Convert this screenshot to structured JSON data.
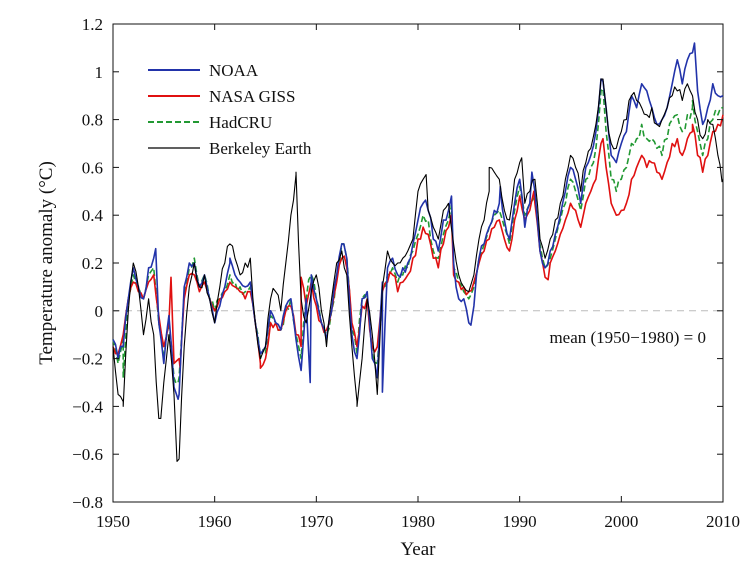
{
  "chart_data": {
    "type": "line",
    "xlabel": "Year",
    "ylabel": "Temperature anomaly (°C)",
    "xlim": [
      1950,
      2010
    ],
    "ylim": [
      -0.8,
      1.2
    ],
    "xticks": [
      1950,
      1960,
      1970,
      1980,
      1990,
      2000,
      2010
    ],
    "yticks": [
      -0.8,
      -0.6,
      -0.4,
      -0.2,
      0,
      0.2,
      0.4,
      0.6,
      0.8,
      1,
      1.2
    ],
    "ytick_labels": [
      "−0.8",
      "−0.6",
      "−0.4",
      "−0.2",
      "0",
      "0.2",
      "0.4",
      "0.6",
      "0.8",
      "1",
      "1.2"
    ],
    "annotation": "mean (1950−1980) = 0",
    "legend_position": "top-left",
    "grid": false,
    "reference_line": {
      "y": 0,
      "style": "dashed",
      "color": "#bbbbbb"
    },
    "series": [
      {
        "name": "NOAA",
        "color": "#2233aa",
        "style": "solid",
        "x": [
          1950,
          1950.5,
          1951,
          1951.5,
          1952,
          1952.5,
          1953,
          1953.5,
          1954,
          1954.5,
          1955,
          1955.5,
          1956,
          1956.5,
          1957,
          1957.5,
          1958,
          1958.5,
          1959,
          1959.5,
          1960,
          1960.5,
          1961,
          1961.5,
          1962,
          1962.5,
          1963,
          1963.5,
          1964,
          1964.5,
          1965,
          1965.5,
          1966,
          1966.5,
          1967,
          1967.5,
          1968,
          1968.5,
          1969,
          1969.5,
          1970,
          1970.5,
          1971,
          1971.5,
          1972,
          1972.5,
          1973,
          1973.5,
          1974,
          1974.5,
          1975,
          1975.5,
          1976,
          1976.5,
          1977,
          1977.5,
          1978,
          1978.5,
          1979,
          1979.5,
          1980,
          1980.5,
          1981,
          1981.5,
          1982,
          1982.5,
          1983,
          1983.5,
          1984,
          1984.5,
          1985,
          1985.5,
          1986,
          1986.5,
          1987,
          1987.5,
          1988,
          1988.5,
          1989,
          1989.5,
          1990,
          1990.5,
          1991,
          1991.5,
          1992,
          1992.5,
          1993,
          1993.5,
          1994,
          1994.5,
          1995,
          1995.5,
          1996,
          1996.5,
          1997,
          1997.5,
          1998,
          1998.5,
          1999,
          1999.5,
          2000,
          2000.5,
          2001,
          2001.5,
          2002,
          2002.5,
          2003,
          2003.5,
          2004,
          2004.5,
          2005,
          2005.5,
          2006,
          2006.5,
          2007,
          2007.5,
          2008,
          2008.5,
          2009,
          2009.5,
          2010
        ],
        "y": [
          -0.12,
          -0.2,
          -0.15,
          0.05,
          0.18,
          0.1,
          0.05,
          0.18,
          0.22,
          -0.05,
          -0.22,
          -0.02,
          -0.32,
          -0.35,
          0.1,
          0.2,
          0.2,
          0.1,
          0.15,
          0.05,
          -0.05,
          0.02,
          0.1,
          0.2,
          0.15,
          0.12,
          0.1,
          0.12,
          -0.05,
          -0.18,
          -0.15,
          0.0,
          -0.05,
          -0.08,
          0.02,
          0.05,
          -0.12,
          -0.25,
          0.05,
          0.15,
          0.05,
          -0.05,
          -0.12,
          0.0,
          0.15,
          0.28,
          0.22,
          -0.1,
          -0.2,
          0.05,
          0.08,
          -0.2,
          -0.28,
          0.12,
          0.18,
          0.22,
          0.15,
          0.18,
          0.2,
          0.28,
          0.38,
          0.45,
          0.42,
          0.3,
          0.25,
          0.38,
          0.42,
          0.2,
          0.05,
          0.05,
          -0.05,
          0.02,
          0.22,
          0.28,
          0.35,
          0.42,
          0.45,
          0.38,
          0.3,
          0.45,
          0.55,
          0.35,
          0.45,
          0.5,
          0.25,
          0.18,
          0.25,
          0.32,
          0.4,
          0.5,
          0.6,
          0.55,
          0.45,
          0.6,
          0.65,
          0.75,
          0.97,
          0.85,
          0.65,
          0.62,
          0.7,
          0.75,
          0.9,
          0.85,
          0.95,
          0.92,
          0.85,
          0.78,
          0.8,
          0.85,
          0.95,
          1.05,
          0.95,
          1.05,
          1.08,
          0.92,
          0.78,
          0.85,
          0.95,
          0.9,
          0.9
        ],
        "peaks": [
          [
            1954.2,
            0.26
          ],
          [
            1956.4,
            -0.37
          ],
          [
            1961.5,
            0.22
          ],
          [
            1969.4,
            -0.3
          ],
          [
            1972.7,
            0.28
          ],
          [
            1976.5,
            -0.34
          ],
          [
            1983.3,
            0.48
          ],
          [
            1985.2,
            -0.06
          ],
          [
            1988.1,
            0.52
          ],
          [
            1991.2,
            0.58
          ],
          [
            1998.2,
            0.96
          ],
          [
            2007.2,
            1.12
          ]
        ]
      },
      {
        "name": "NASA GISS",
        "color": "#e01010",
        "style": "solid",
        "x": [
          1950,
          1950.5,
          1951,
          1951.5,
          1952,
          1952.5,
          1953,
          1953.5,
          1954,
          1954.5,
          1955,
          1955.5,
          1956,
          1956.5,
          1957,
          1957.5,
          1958,
          1958.5,
          1959,
          1959.5,
          1960,
          1960.5,
          1961,
          1961.5,
          1962,
          1962.5,
          1963,
          1963.5,
          1964,
          1964.5,
          1965,
          1965.5,
          1966,
          1966.5,
          1967,
          1967.5,
          1968,
          1968.5,
          1969,
          1969.5,
          1970,
          1970.5,
          1971,
          1971.5,
          1972,
          1972.5,
          1973,
          1973.5,
          1974,
          1974.5,
          1975,
          1975.5,
          1976,
          1976.5,
          1977,
          1977.5,
          1978,
          1978.5,
          1979,
          1979.5,
          1980,
          1980.5,
          1981,
          1981.5,
          1982,
          1982.5,
          1983,
          1983.5,
          1984,
          1984.5,
          1985,
          1985.5,
          1986,
          1986.5,
          1987,
          1987.5,
          1988,
          1988.5,
          1989,
          1989.5,
          1990,
          1990.5,
          1991,
          1991.5,
          1992,
          1992.5,
          1993,
          1993.5,
          1994,
          1994.5,
          1995,
          1995.5,
          1996,
          1996.5,
          1997,
          1997.5,
          1998,
          1998.5,
          1999,
          1999.5,
          2000,
          2000.5,
          2001,
          2001.5,
          2002,
          2002.5,
          2003,
          2003.5,
          2004,
          2004.5,
          2005,
          2005.5,
          2006,
          2006.5,
          2007,
          2007.5,
          2008,
          2008.5,
          2009,
          2009.5,
          2010
        ],
        "y": [
          -0.15,
          -0.18,
          -0.1,
          0.05,
          0.12,
          0.08,
          0.05,
          0.12,
          0.15,
          -0.02,
          -0.15,
          -0.05,
          -0.22,
          -0.2,
          0.05,
          0.15,
          0.15,
          0.08,
          0.12,
          0.05,
          0.0,
          0.05,
          0.08,
          0.12,
          0.1,
          0.08,
          0.05,
          0.08,
          -0.05,
          -0.22,
          -0.2,
          -0.05,
          -0.05,
          -0.08,
          0.0,
          0.02,
          -0.1,
          -0.15,
          0.02,
          0.12,
          0.02,
          -0.05,
          -0.08,
          0.0,
          0.12,
          0.22,
          0.18,
          -0.05,
          -0.15,
          0.02,
          0.05,
          -0.15,
          -0.15,
          0.08,
          0.12,
          0.15,
          0.08,
          0.12,
          0.15,
          0.22,
          0.3,
          0.35,
          0.32,
          0.22,
          0.18,
          0.28,
          0.35,
          0.15,
          0.12,
          0.1,
          0.08,
          0.12,
          0.2,
          0.25,
          0.3,
          0.35,
          0.38,
          0.3,
          0.25,
          0.38,
          0.48,
          0.38,
          0.42,
          0.45,
          0.25,
          0.14,
          0.2,
          0.25,
          0.32,
          0.38,
          0.45,
          0.42,
          0.35,
          0.45,
          0.5,
          0.55,
          0.7,
          0.6,
          0.45,
          0.4,
          0.42,
          0.45,
          0.55,
          0.6,
          0.65,
          0.6,
          0.62,
          0.58,
          0.55,
          0.62,
          0.7,
          0.72,
          0.65,
          0.72,
          0.75,
          0.65,
          0.58,
          0.65,
          0.75,
          0.78,
          0.82
        ],
        "peaks": [
          [
            1955.7,
            0.14
          ],
          [
            1956.6,
            -0.24
          ],
          [
            1964.5,
            -0.24
          ],
          [
            1968.5,
            0.14
          ],
          [
            1983.3,
            0.4
          ],
          [
            1991.4,
            0.5
          ],
          [
            1992.8,
            0.13
          ],
          [
            1998.2,
            0.72
          ],
          [
            2007.0,
            0.78
          ]
        ]
      },
      {
        "name": "HadCRU",
        "color": "#229933",
        "style": "dashed",
        "x": [
          1950,
          1950.5,
          1951,
          1951.5,
          1952,
          1952.5,
          1953,
          1953.5,
          1954,
          1954.5,
          1955,
          1955.5,
          1956,
          1956.5,
          1957,
          1957.5,
          1958,
          1958.5,
          1959,
          1959.5,
          1960,
          1960.5,
          1961,
          1961.5,
          1962,
          1962.5,
          1963,
          1963.5,
          1964,
          1964.5,
          1965,
          1965.5,
          1966,
          1966.5,
          1967,
          1967.5,
          1968,
          1968.5,
          1969,
          1969.5,
          1970,
          1970.5,
          1971,
          1971.5,
          1972,
          1972.5,
          1973,
          1973.5,
          1974,
          1974.5,
          1975,
          1975.5,
          1976,
          1976.5,
          1977,
          1977.5,
          1978,
          1978.5,
          1979,
          1979.5,
          1980,
          1980.5,
          1981,
          1981.5,
          1982,
          1982.5,
          1983,
          1983.5,
          1984,
          1984.5,
          1985,
          1985.5,
          1986,
          1986.5,
          1987,
          1987.5,
          1988,
          1988.5,
          1989,
          1989.5,
          1990,
          1990.5,
          1991,
          1991.5,
          1992,
          1992.5,
          1993,
          1993.5,
          1994,
          1994.5,
          1995,
          1995.5,
          1996,
          1996.5,
          1997,
          1997.5,
          1998,
          1998.5,
          1999,
          1999.5,
          2000,
          2000.5,
          2001,
          2001.5,
          2002,
          2002.5,
          2003,
          2003.5,
          2004,
          2004.5,
          2005,
          2005.5,
          2006,
          2006.5,
          2007,
          2007.5,
          2008,
          2008.5,
          2009,
          2009.5,
          2010
        ],
        "y": [
          -0.12,
          -0.22,
          -0.12,
          0.05,
          0.15,
          0.1,
          0.05,
          0.15,
          0.18,
          -0.05,
          -0.2,
          -0.05,
          -0.28,
          -0.28,
          0.08,
          0.18,
          0.22,
          0.1,
          0.15,
          0.05,
          0.0,
          0.05,
          0.08,
          0.15,
          0.12,
          0.1,
          0.08,
          0.1,
          -0.05,
          -0.2,
          -0.18,
          -0.02,
          -0.05,
          -0.08,
          0.02,
          0.05,
          -0.1,
          -0.2,
          0.05,
          0.15,
          0.05,
          -0.05,
          -0.1,
          0.0,
          0.15,
          0.28,
          0.22,
          -0.08,
          -0.18,
          0.05,
          0.05,
          -0.18,
          -0.22,
          0.1,
          0.15,
          0.18,
          0.12,
          0.15,
          0.18,
          0.25,
          0.32,
          0.4,
          0.38,
          0.25,
          0.22,
          0.32,
          0.38,
          0.18,
          0.12,
          0.08,
          0.05,
          0.1,
          0.22,
          0.28,
          0.35,
          0.4,
          0.42,
          0.35,
          0.28,
          0.42,
          0.52,
          0.4,
          0.45,
          0.48,
          0.28,
          0.18,
          0.22,
          0.3,
          0.38,
          0.45,
          0.55,
          0.5,
          0.42,
          0.55,
          0.6,
          0.68,
          0.92,
          0.75,
          0.55,
          0.5,
          0.55,
          0.6,
          0.7,
          0.72,
          0.78,
          0.72,
          0.72,
          0.68,
          0.65,
          0.72,
          0.8,
          0.82,
          0.75,
          0.82,
          0.85,
          0.75,
          0.65,
          0.72,
          0.8,
          0.82,
          0.85
        ],
        "peaks": [
          [
            1951.0,
            -0.28
          ],
          [
            1956.4,
            -0.3
          ],
          [
            1972.7,
            0.28
          ],
          [
            1983.3,
            0.44
          ],
          [
            1998.2,
            0.93
          ],
          [
            2007.0,
            0.88
          ]
        ]
      },
      {
        "name": "Berkeley Earth",
        "color": "#000000",
        "style": "solid",
        "x": [
          1950,
          1950.5,
          1951,
          1951.5,
          1952,
          1952.5,
          1953,
          1953.5,
          1954,
          1954.5,
          1955,
          1955.5,
          1956,
          1956.5,
          1957,
          1957.5,
          1958,
          1958.5,
          1959,
          1959.5,
          1960,
          1960.5,
          1961,
          1961.5,
          1962,
          1962.5,
          1963,
          1963.5,
          1964,
          1964.5,
          1965,
          1965.5,
          1966,
          1966.5,
          1967,
          1967.5,
          1968,
          1968.5,
          1969,
          1969.5,
          1970,
          1970.5,
          1971,
          1971.5,
          1972,
          1972.5,
          1973,
          1973.5,
          1974,
          1974.5,
          1975,
          1975.5,
          1976,
          1976.5,
          1977,
          1977.5,
          1978,
          1978.5,
          1979,
          1979.5,
          1980,
          1980.5,
          1981,
          1981.5,
          1982,
          1982.5,
          1983,
          1983.5,
          1984,
          1984.5,
          1985,
          1985.5,
          1986,
          1986.5,
          1987,
          1987.5,
          1988,
          1988.5,
          1989,
          1989.5,
          1990,
          1990.5,
          1991,
          1991.5,
          1992,
          1992.5,
          1993,
          1993.5,
          1994,
          1994.5,
          1995,
          1995.5,
          1996,
          1996.5,
          1997,
          1997.5,
          1998,
          1998.5,
          1999,
          1999.5,
          2000,
          2000.5,
          2001,
          2001.5,
          2002,
          2002.5,
          2003,
          2003.5,
          2004,
          2004.5,
          2005,
          2005.5,
          2006,
          2006.5,
          2007,
          2007.5,
          2008,
          2008.5,
          2009,
          2009.5,
          2010
        ],
        "y": [
          -0.15,
          -0.35,
          -0.38,
          0.0,
          0.2,
          0.1,
          -0.1,
          0.05,
          -0.1,
          -0.45,
          -0.3,
          -0.1,
          -0.35,
          -0.62,
          -0.15,
          0.1,
          0.2,
          0.1,
          0.15,
          0.05,
          -0.05,
          0.1,
          0.2,
          0.28,
          0.22,
          0.15,
          0.2,
          0.22,
          -0.05,
          -0.2,
          -0.15,
          0.05,
          0.08,
          0.0,
          0.2,
          0.4,
          0.57,
          0.05,
          -0.05,
          0.08,
          0.15,
          0.0,
          -0.15,
          0.05,
          0.2,
          0.25,
          0.15,
          -0.15,
          -0.38,
          -0.2,
          0.05,
          -0.1,
          -0.35,
          0.1,
          0.25,
          0.2,
          0.2,
          0.22,
          0.25,
          0.3,
          0.5,
          0.55,
          0.42,
          0.35,
          0.3,
          0.42,
          0.45,
          0.28,
          0.15,
          0.1,
          0.08,
          0.15,
          0.3,
          0.38,
          0.5,
          0.58,
          0.55,
          0.42,
          0.38,
          0.55,
          0.62,
          0.45,
          0.5,
          0.55,
          0.3,
          0.22,
          0.3,
          0.38,
          0.45,
          0.55,
          0.65,
          0.6,
          0.5,
          0.62,
          0.68,
          0.78,
          0.97,
          0.85,
          0.7,
          0.68,
          0.75,
          0.8,
          0.9,
          0.88,
          0.85,
          0.82,
          0.85,
          0.78,
          0.8,
          0.85,
          0.9,
          0.92,
          0.88,
          0.95,
          0.9,
          0.8,
          0.72,
          0.8,
          0.78,
          0.65,
          0.55
        ],
        "peaks": [
          [
            1951.0,
            -0.4
          ],
          [
            1954.7,
            -0.45
          ],
          [
            1956.3,
            -0.63
          ],
          [
            1968.0,
            0.58
          ],
          [
            1974.0,
            -0.4
          ],
          [
            1980.8,
            0.57
          ],
          [
            1987.0,
            0.6
          ],
          [
            1990.2,
            0.64
          ],
          [
            1998.2,
            0.97
          ],
          [
            2009.9,
            0.54
          ]
        ]
      }
    ]
  }
}
